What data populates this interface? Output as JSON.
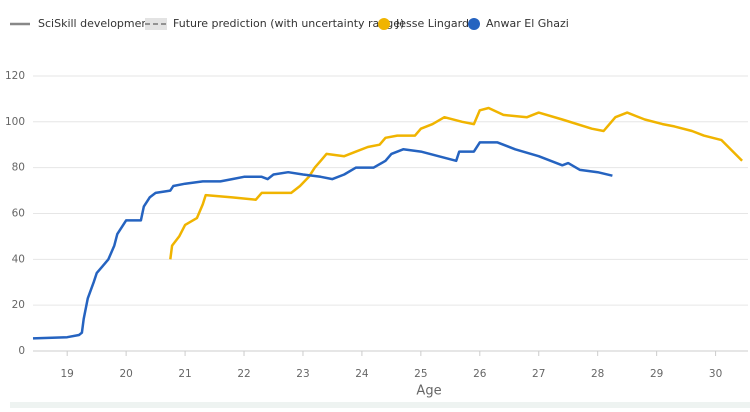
{
  "chart_data": {
    "type": "line",
    "legend_items": [
      "SciSkill development",
      "Future prediction (with uncertainty range)"
    ],
    "x_label": "Age",
    "xlim": [
      18.42,
      30.55
    ],
    "xticks": [
      19,
      20,
      21,
      22,
      23,
      24,
      25,
      26,
      27,
      28,
      29,
      30
    ],
    "ylim": [
      0,
      125
    ],
    "yticks": [
      0,
      20,
      40,
      60,
      80,
      100,
      120
    ],
    "grid": true,
    "series": [
      {
        "name": "Jesse Lingard",
        "color": "#f0b400",
        "x": [
          20.75,
          20.78,
          20.9,
          21.0,
          21.2,
          21.3,
          21.35,
          21.8,
          22.2,
          22.3,
          22.8,
          22.95,
          23.1,
          23.2,
          23.3,
          23.4,
          23.7,
          23.9,
          24.1,
          24.3,
          24.4,
          24.6,
          24.9,
          25.0,
          25.2,
          25.4,
          25.7,
          25.9,
          26.0,
          26.15,
          26.4,
          26.8,
          27.0,
          27.4,
          27.9,
          28.1,
          28.3,
          28.5,
          28.8,
          29.1,
          29.3,
          29.6,
          29.8,
          30.1,
          30.45
        ],
        "values": [
          40,
          46,
          50,
          55,
          58,
          64,
          68,
          67,
          66,
          69,
          69,
          72,
          76,
          80,
          83,
          86,
          85,
          87,
          89,
          90,
          93,
          94,
          94,
          97,
          99,
          102,
          100,
          99,
          105,
          106,
          103,
          102,
          104,
          101,
          97,
          96,
          102,
          104,
          101,
          99,
          98,
          96,
          94,
          92,
          83
        ]
      },
      {
        "name": "Anwar El Ghazi",
        "color": "#2563c0",
        "x": [
          18.42,
          19.0,
          19.2,
          19.25,
          19.28,
          19.35,
          19.45,
          19.5,
          19.6,
          19.7,
          19.8,
          19.85,
          19.95,
          20.0,
          20.25,
          20.3,
          20.4,
          20.5,
          20.75,
          20.8,
          21.0,
          21.3,
          21.6,
          21.8,
          22.0,
          22.3,
          22.4,
          22.5,
          22.75,
          23.0,
          23.3,
          23.5,
          23.7,
          23.9,
          24.2,
          24.4,
          24.5,
          24.7,
          25.0,
          25.3,
          25.6,
          25.65,
          25.9,
          26.0,
          26.3,
          26.6,
          27.0,
          27.4,
          27.5,
          27.7,
          28.0,
          28.25
        ],
        "values": [
          5.5,
          6,
          7,
          8,
          14,
          23,
          30,
          34,
          37,
          40,
          46,
          51,
          55,
          57,
          57,
          63,
          67,
          69,
          70,
          72,
          73,
          74,
          74,
          75,
          76,
          76,
          75,
          77,
          78,
          77,
          76,
          75,
          77,
          80,
          80,
          83,
          86,
          88,
          87,
          85,
          83,
          87,
          87,
          91,
          91,
          88,
          85,
          81,
          82,
          79,
          78,
          76.5
        ]
      }
    ]
  }
}
